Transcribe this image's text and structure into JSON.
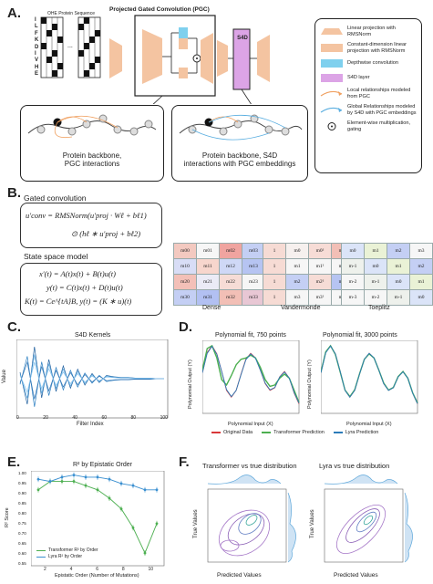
{
  "panels": {
    "a": "A.",
    "b": "B.",
    "c": "C.",
    "d": "D.",
    "e": "E.",
    "f": "F."
  },
  "a": {
    "ohe_title": "OHE Protein Sequence",
    "sequence_letters": [
      "I",
      "L",
      "F",
      "K",
      "D",
      "I",
      "V",
      "H",
      "E"
    ],
    "ellipsis": "...",
    "pgc_title": "Projected Gated Convolution (PGC)",
    "s4d_label": "S4D",
    "box1_line1": "Protein backbone,",
    "box1_line2": "PGC interactions",
    "box2_line1": "Protein backbone, S4D",
    "box2_line2": "interactions with PGC embeddings",
    "legend": [
      {
        "text": "Linear projection with RMSNorm",
        "icon": "trapezoid-icon",
        "color": "#f4c4a1"
      },
      {
        "text": "Constant-dimension linear projection with RMSNorm",
        "icon": "rectangle-icon",
        "color": "#f4c4a1"
      },
      {
        "text": "Depthwise convolution",
        "icon": "rectangle-icon",
        "color": "#7fd0ee"
      },
      {
        "text": "S4D layer",
        "icon": "rectangle-icon",
        "color": "#dca4e6"
      },
      {
        "text": "Local relationships modeled from PGC",
        "icon": "arrow-icon",
        "color": "#f0a060"
      },
      {
        "text": "Global Relationships modeled by S4D with PGC embeddings",
        "icon": "arrow-icon",
        "color": "#5aaee0"
      },
      {
        "text": "Element-wise multiplication, gating",
        "icon": "odot-icon",
        "color": "#222222"
      }
    ]
  },
  "b": {
    "gated_title": "Gated convolution",
    "ssm_title": "State space model",
    "eq1a": "u′conv = RMSNorm(u′proj · Wℓ + bℓ1)",
    "eq1b": "⊙ (hℓ ∗ u′proj + bℓ2)",
    "eq2": "x′(t) = A(t)x(t) + B(t)u(t)",
    "eq3": "y(t) = C(t)x(t) + D(t)u(t)",
    "eq4": "K(t) = Ce^{tA}B, y(t) = (K ∗ u)(t)",
    "dense_label": "Dense",
    "vander_label": "Vandermonde",
    "toeplitz_label": "Toeplitz",
    "dense": [
      [
        "m00",
        "m01",
        "m02",
        "m03"
      ],
      [
        "m10",
        "m11",
        "m12",
        "m13"
      ],
      [
        "m20",
        "m21",
        "m22",
        "m23"
      ],
      [
        "m30",
        "m31",
        "m32",
        "m33"
      ]
    ],
    "vander": [
      [
        "1",
        "m0",
        "m0²",
        "m0³"
      ],
      [
        "1",
        "m1",
        "m1²",
        "m1³"
      ],
      [
        "1",
        "m2",
        "m2²",
        "m2³"
      ],
      [
        "1",
        "m3",
        "m3²",
        "m3³"
      ]
    ],
    "toeplitz": [
      [
        "m0",
        "m1",
        "m2",
        "m3"
      ],
      [
        "m-1",
        "m0",
        "m1",
        "m2"
      ],
      [
        "m-2",
        "m-1",
        "m0",
        "m1"
      ],
      [
        "m-3",
        "m-2",
        "m-1",
        "m0"
      ]
    ]
  },
  "c": {
    "title": "S4D Kernels",
    "xlabel": "Filter Index",
    "ylabel": "Value",
    "xticks": [
      "0",
      "20",
      "40",
      "60",
      "80",
      "100"
    ]
  },
  "d": {
    "title1": "Polynomial fit, 750 points",
    "title2": "Polynomial fit, 3000 points",
    "xlabel": "Polynomial Input (X)",
    "ylabel": "Polynomial Output (Y)",
    "legend": [
      "Original Data",
      "Transformer Prediction",
      "Lyra Prediction"
    ],
    "xticks": [
      "-1.0",
      "-0.5",
      "0.0",
      "0.5",
      "1.0"
    ],
    "yticks": [
      "2.0",
      "1.5",
      "1.0",
      "0.5",
      "0.0",
      "-0.5"
    ]
  },
  "e": {
    "title": "R² by Epistatic Order",
    "xlabel": "Epistatic Order (Number of Mutations)",
    "ylabel": "R² Score",
    "legend": [
      "Transformer R² by Order",
      "Lyra R² by Order"
    ],
    "yticks": [
      "1.00",
      "0.95",
      "0.90",
      "0.85",
      "0.80",
      "0.75",
      "0.70",
      "0.65",
      "0.60",
      "0.55"
    ],
    "xticks": [
      "2",
      "4",
      "6",
      "8",
      "10"
    ]
  },
  "f": {
    "title1": "Transformer vs true distribution",
    "title2": "Lyra vs true distribution",
    "xlabel": "Predicted Values",
    "ylabel": "True Values",
    "xticks": [
      "-0.5",
      "0.0",
      "0.5",
      "1.0"
    ],
    "yticks": [
      "1.0",
      "0.5",
      "0.0",
      "-0.5"
    ]
  },
  "chart_data": [
    {
      "type": "line",
      "title": "S4D Kernels",
      "xlabel": "Filter Index",
      "ylabel": "Value",
      "xlim": [
        0,
        100
      ],
      "series": [
        {
          "values": [
            0.1,
            -0.4,
            0.5,
            -0.3,
            0.3,
            -0.2,
            0.2,
            -0.15,
            0.15,
            -0.1,
            0.08,
            -0.06,
            0.05,
            0.03,
            0.02,
            0.02,
            0.01,
            0.01,
            0.01,
            0.0,
            0.0
          ]
        }
      ]
    },
    {
      "type": "line",
      "title": "Polynomial fit, 750 points",
      "xlabel": "Polynomial Input (X)",
      "ylabel": "Polynomial Output (Y)",
      "xlim": [
        -1,
        1
      ],
      "ylim": [
        -0.5,
        2.2
      ],
      "x": [
        -1.0,
        -0.9,
        -0.8,
        -0.7,
        -0.6,
        -0.5,
        -0.4,
        -0.3,
        -0.2,
        -0.1,
        0.0,
        0.1,
        0.2,
        0.3,
        0.4,
        0.5,
        0.6,
        0.7,
        0.8,
        0.9,
        1.0
      ],
      "series": [
        {
          "name": "Original Data",
          "values": [
            1.0,
            1.75,
            2.0,
            1.7,
            1.05,
            0.35,
            0.1,
            0.35,
            0.95,
            1.5,
            1.72,
            1.55,
            1.1,
            0.6,
            0.35,
            0.45,
            0.85,
            1.05,
            0.8,
            0.25,
            -0.15
          ]
        },
        {
          "name": "Transformer Prediction",
          "values": [
            1.1,
            1.9,
            2.0,
            1.55,
            0.75,
            0.55,
            0.9,
            1.3,
            1.5,
            1.55,
            1.65,
            1.55,
            1.2,
            0.75,
            0.5,
            0.55,
            0.8,
            0.95,
            0.8,
            0.35,
            -0.1
          ]
        },
        {
          "name": "Lyra Prediction",
          "values": [
            1.0,
            1.72,
            1.98,
            1.68,
            1.05,
            0.38,
            0.12,
            0.35,
            0.93,
            1.48,
            1.7,
            1.54,
            1.1,
            0.62,
            0.37,
            0.46,
            0.84,
            1.03,
            0.8,
            0.27,
            -0.12
          ]
        }
      ]
    },
    {
      "type": "line",
      "title": "Polynomial fit, 3000 points",
      "xlabel": "Polynomial Input (X)",
      "ylabel": "Polynomial Output (Y)",
      "xlim": [
        -1,
        1
      ],
      "ylim": [
        -0.5,
        2.2
      ],
      "x": [
        -1.0,
        -0.9,
        -0.8,
        -0.7,
        -0.6,
        -0.5,
        -0.4,
        -0.3,
        -0.2,
        -0.1,
        0.0,
        0.1,
        0.2,
        0.3,
        0.4,
        0.5,
        0.6,
        0.7,
        0.8,
        0.9,
        1.0
      ],
      "series": [
        {
          "name": "Original Data",
          "values": [
            1.0,
            1.75,
            2.0,
            1.7,
            1.05,
            0.35,
            0.1,
            0.35,
            0.95,
            1.5,
            1.72,
            1.55,
            1.1,
            0.6,
            0.35,
            0.45,
            0.85,
            1.05,
            0.8,
            0.25,
            -0.15
          ]
        },
        {
          "name": "Transformer Prediction",
          "values": [
            1.02,
            1.77,
            2.0,
            1.68,
            1.03,
            0.36,
            0.12,
            0.37,
            0.96,
            1.5,
            1.7,
            1.55,
            1.1,
            0.62,
            0.36,
            0.46,
            0.86,
            1.05,
            0.8,
            0.26,
            -0.12
          ]
        },
        {
          "name": "Lyra Prediction",
          "values": [
            1.0,
            1.74,
            1.99,
            1.7,
            1.05,
            0.35,
            0.1,
            0.35,
            0.95,
            1.5,
            1.72,
            1.55,
            1.1,
            0.6,
            0.35,
            0.45,
            0.85,
            1.04,
            0.8,
            0.25,
            -0.14
          ]
        }
      ]
    },
    {
      "type": "line",
      "title": "R² by Epistatic Order",
      "xlabel": "Epistatic Order (Number of Mutations)",
      "ylabel": "R² Score",
      "ylim": [
        0.55,
        1.0
      ],
      "x": [
        1,
        2,
        3,
        4,
        5,
        6,
        7,
        8,
        9,
        10,
        11
      ],
      "series": [
        {
          "name": "Transformer R² by Order",
          "values": [
            0.91,
            0.95,
            0.95,
            0.95,
            0.93,
            0.91,
            0.87,
            0.82,
            0.73,
            0.61,
            0.75
          ]
        },
        {
          "name": "Lyra R² by Order",
          "values": [
            0.96,
            0.95,
            0.97,
            0.98,
            0.97,
            0.97,
            0.96,
            0.94,
            0.93,
            0.91,
            0.91
          ]
        }
      ]
    }
  ]
}
